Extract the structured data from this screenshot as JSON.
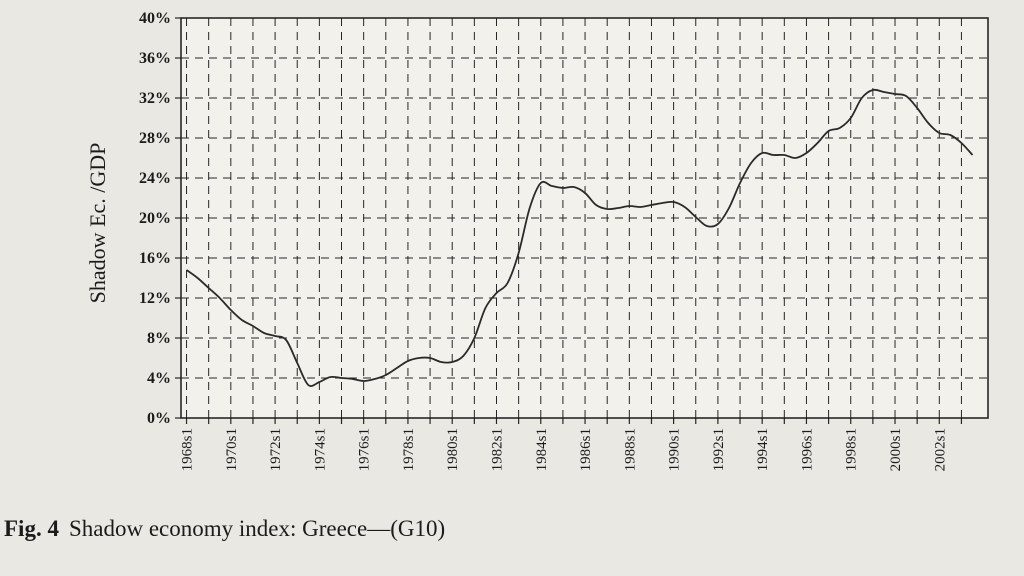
{
  "chart_data": {
    "type": "line",
    "ylabel": "Shadow Ec. /GDP",
    "ylim": [
      0,
      40
    ],
    "yticks": [
      "0%",
      "4%",
      "8%",
      "12%",
      "16%",
      "20%",
      "24%",
      "28%",
      "32%",
      "36%",
      "40%"
    ],
    "ytick_values": [
      0,
      4,
      8,
      12,
      16,
      20,
      24,
      28,
      32,
      36,
      40
    ],
    "xticks": [
      "1968s1",
      "1970s1",
      "1972s1",
      "1974s1",
      "1976s1",
      "1978s1",
      "1980s1",
      "1982s1",
      "1984s1",
      "1986s1",
      "1988s1",
      "1990s1",
      "1992s1",
      "1994s1",
      "1996s1",
      "1998s1",
      "2000s1",
      "2002s1"
    ],
    "xlim": [
      1967.75,
      2004.2
    ],
    "grid": true,
    "series": [
      {
        "x": [
          1968,
          1968.5,
          1969,
          1969.5,
          1970,
          1970.5,
          1971,
          1971.5,
          1972,
          1972.5,
          1973,
          1973.5,
          1974,
          1974.5,
          1975,
          1975.5,
          1976,
          1976.5,
          1977,
          1977.5,
          1978,
          1978.5,
          1979,
          1979.5,
          1980,
          1980.5,
          1981,
          1981.5,
          1982,
          1982.5,
          1983,
          1983.5,
          1984,
          1984.5,
          1985,
          1985.5,
          1986,
          1986.5,
          1987,
          1987.5,
          1988,
          1988.5,
          1989,
          1989.5,
          1990,
          1990.5,
          1991,
          1991.5,
          1992,
          1992.5,
          1993,
          1993.5,
          1994,
          1994.5,
          1995,
          1995.5,
          1996,
          1996.5,
          1997,
          1997.5,
          1998,
          1998.5,
          1999,
          1999.5,
          2000,
          2000.5,
          2001,
          2001.5,
          2002,
          2002.5,
          2003,
          2003.5
        ],
        "y": [
          14.8,
          14.0,
          13.0,
          12.0,
          10.8,
          9.8,
          9.2,
          8.5,
          8.2,
          7.8,
          5.5,
          3.3,
          3.6,
          4.1,
          4.0,
          3.9,
          3.7,
          3.9,
          4.3,
          5.0,
          5.7,
          6.0,
          6.0,
          5.6,
          5.6,
          6.2,
          8.0,
          11.0,
          12.5,
          13.5,
          16.5,
          21.0,
          23.5,
          23.2,
          23.0,
          23.1,
          22.5,
          21.3,
          20.9,
          21.0,
          21.2,
          21.1,
          21.3,
          21.5,
          21.6,
          21.1,
          20.1,
          19.2,
          19.4,
          21.0,
          23.5,
          25.5,
          26.5,
          26.3,
          26.3,
          26.0,
          26.5,
          27.5,
          28.7,
          29.0,
          30.0,
          32.0,
          32.8,
          32.6,
          32.4,
          32.2,
          31.0,
          29.5,
          28.5,
          28.3,
          27.5,
          26.3
        ]
      }
    ]
  },
  "caption": {
    "fig_number": "Fig. 4",
    "text": "Shadow economy index: Greece—(G10)"
  },
  "colors": {
    "background": "#e9e8e3",
    "plot_area": "#f2f1ec",
    "line": "#2a2a2a",
    "grid": "#262626"
  }
}
